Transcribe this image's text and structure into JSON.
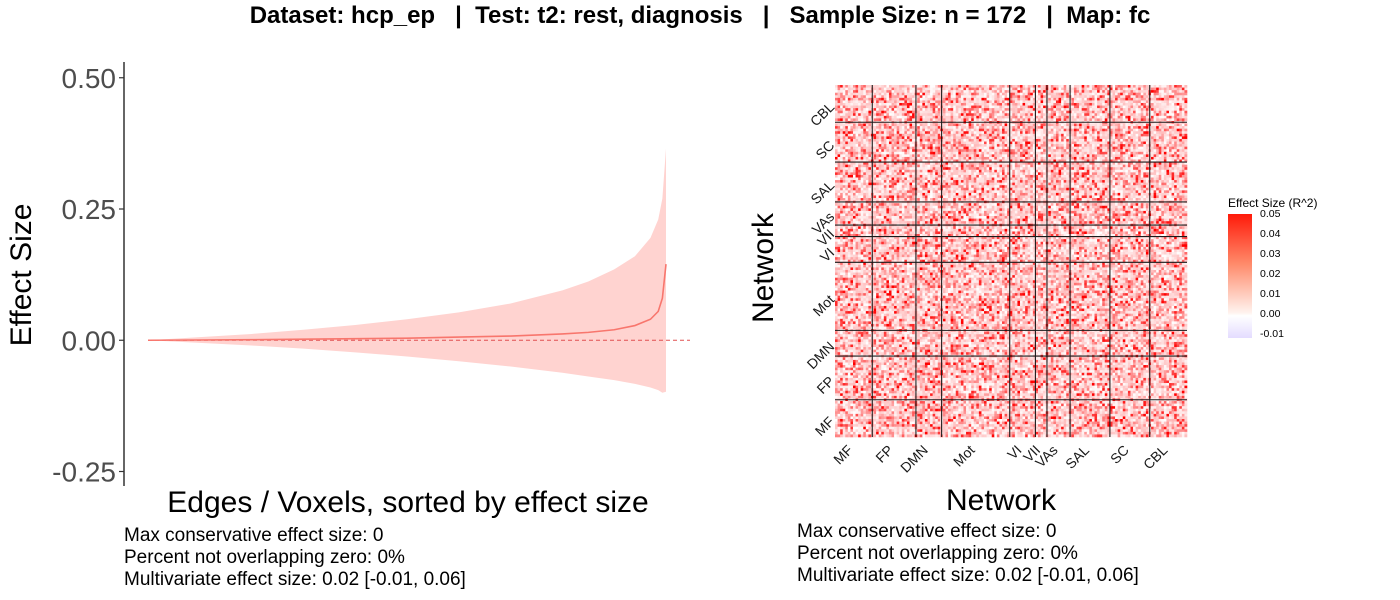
{
  "title": "Dataset: hcp_ep   |  Test: t2: rest, diagnosis   |   Sample Size: n = 172   |  Map: fc",
  "colors": {
    "line": "#f8766d",
    "ribbon": "#ffd3d0",
    "zero_line": "#e05050",
    "heat_high": "#ff0000",
    "heat_low": "#ffffff",
    "heat_neg": "#e2d9ff"
  },
  "chart_data": [
    {
      "type": "area",
      "title": "",
      "xlabel": "Edges / Voxels, sorted by effect size",
      "ylabel": "Effect Size",
      "yticks": [
        "-0.25",
        "0.00",
        "0.25",
        "0.50"
      ],
      "ytick_values": [
        -0.25,
        0.0,
        0.25,
        0.5
      ],
      "ylim": [
        -0.27,
        0.53
      ],
      "xlim": [
        0,
        1
      ],
      "grid": false,
      "x": [
        0.0,
        0.1,
        0.2,
        0.3,
        0.4,
        0.5,
        0.6,
        0.7,
        0.8,
        0.85,
        0.9,
        0.94,
        0.97,
        0.985,
        0.993,
        1.0
      ],
      "series": [
        {
          "values": [
            0.0,
            0.0005,
            0.001,
            0.002,
            0.003,
            0.004,
            0.006,
            0.008,
            0.012,
            0.015,
            0.02,
            0.028,
            0.04,
            0.055,
            0.08,
            0.145
          ]
        },
        {
          "values": [
            0.0,
            0.006,
            0.012,
            0.02,
            0.029,
            0.04,
            0.053,
            0.07,
            0.095,
            0.112,
            0.135,
            0.16,
            0.195,
            0.23,
            0.27,
            0.365
          ]
        },
        {
          "values": [
            0.0,
            -0.005,
            -0.01,
            -0.016,
            -0.023,
            -0.031,
            -0.04,
            -0.05,
            -0.062,
            -0.069,
            -0.076,
            -0.083,
            -0.09,
            -0.095,
            -0.1,
            -0.098
          ]
        }
      ],
      "reference_line": 0.0
    },
    {
      "type": "heatmap",
      "title": "",
      "xlabel": "Network",
      "ylabel": "Network",
      "x_categories": [
        "MF",
        "FP",
        "DMN",
        "Mot",
        "VI",
        "VII",
        "VAs",
        "SAL",
        "SC",
        "CBL"
      ],
      "y_categories": [
        "MF",
        "FP",
        "DMN",
        "Mot",
        "VI",
        "VII",
        "VAs",
        "SAL",
        "SC",
        "CBL"
      ],
      "network_sizes": [
        29,
        34,
        20,
        53,
        20,
        9,
        18,
        31,
        31,
        29
      ],
      "legend_title": "Effect Size (R^2)",
      "legend_ticks": [
        "0.05",
        "0.04",
        "0.03",
        "0.02",
        "0.01",
        "0.00",
        "-0.01"
      ],
      "legend_tick_values": [
        0.05,
        0.04,
        0.03,
        0.02,
        0.01,
        0.0,
        -0.01
      ],
      "value_range": [
        -0.012,
        0.05
      ],
      "note": ""
    }
  ],
  "left_stats": {
    "max_conservative": "Max conservative effect size: 0",
    "percent_nonzero": "Percent not overlapping zero: 0%",
    "multivariate": "Multivariate effect size: 0.02 [-0.01, 0.06]"
  },
  "right_stats": {
    "max_conservative": "Max conservative effect size: 0",
    "percent_nonzero": "Percent not overlapping zero: 0%",
    "multivariate": "Multivariate effect size: 0.02 [-0.01, 0.06]"
  }
}
